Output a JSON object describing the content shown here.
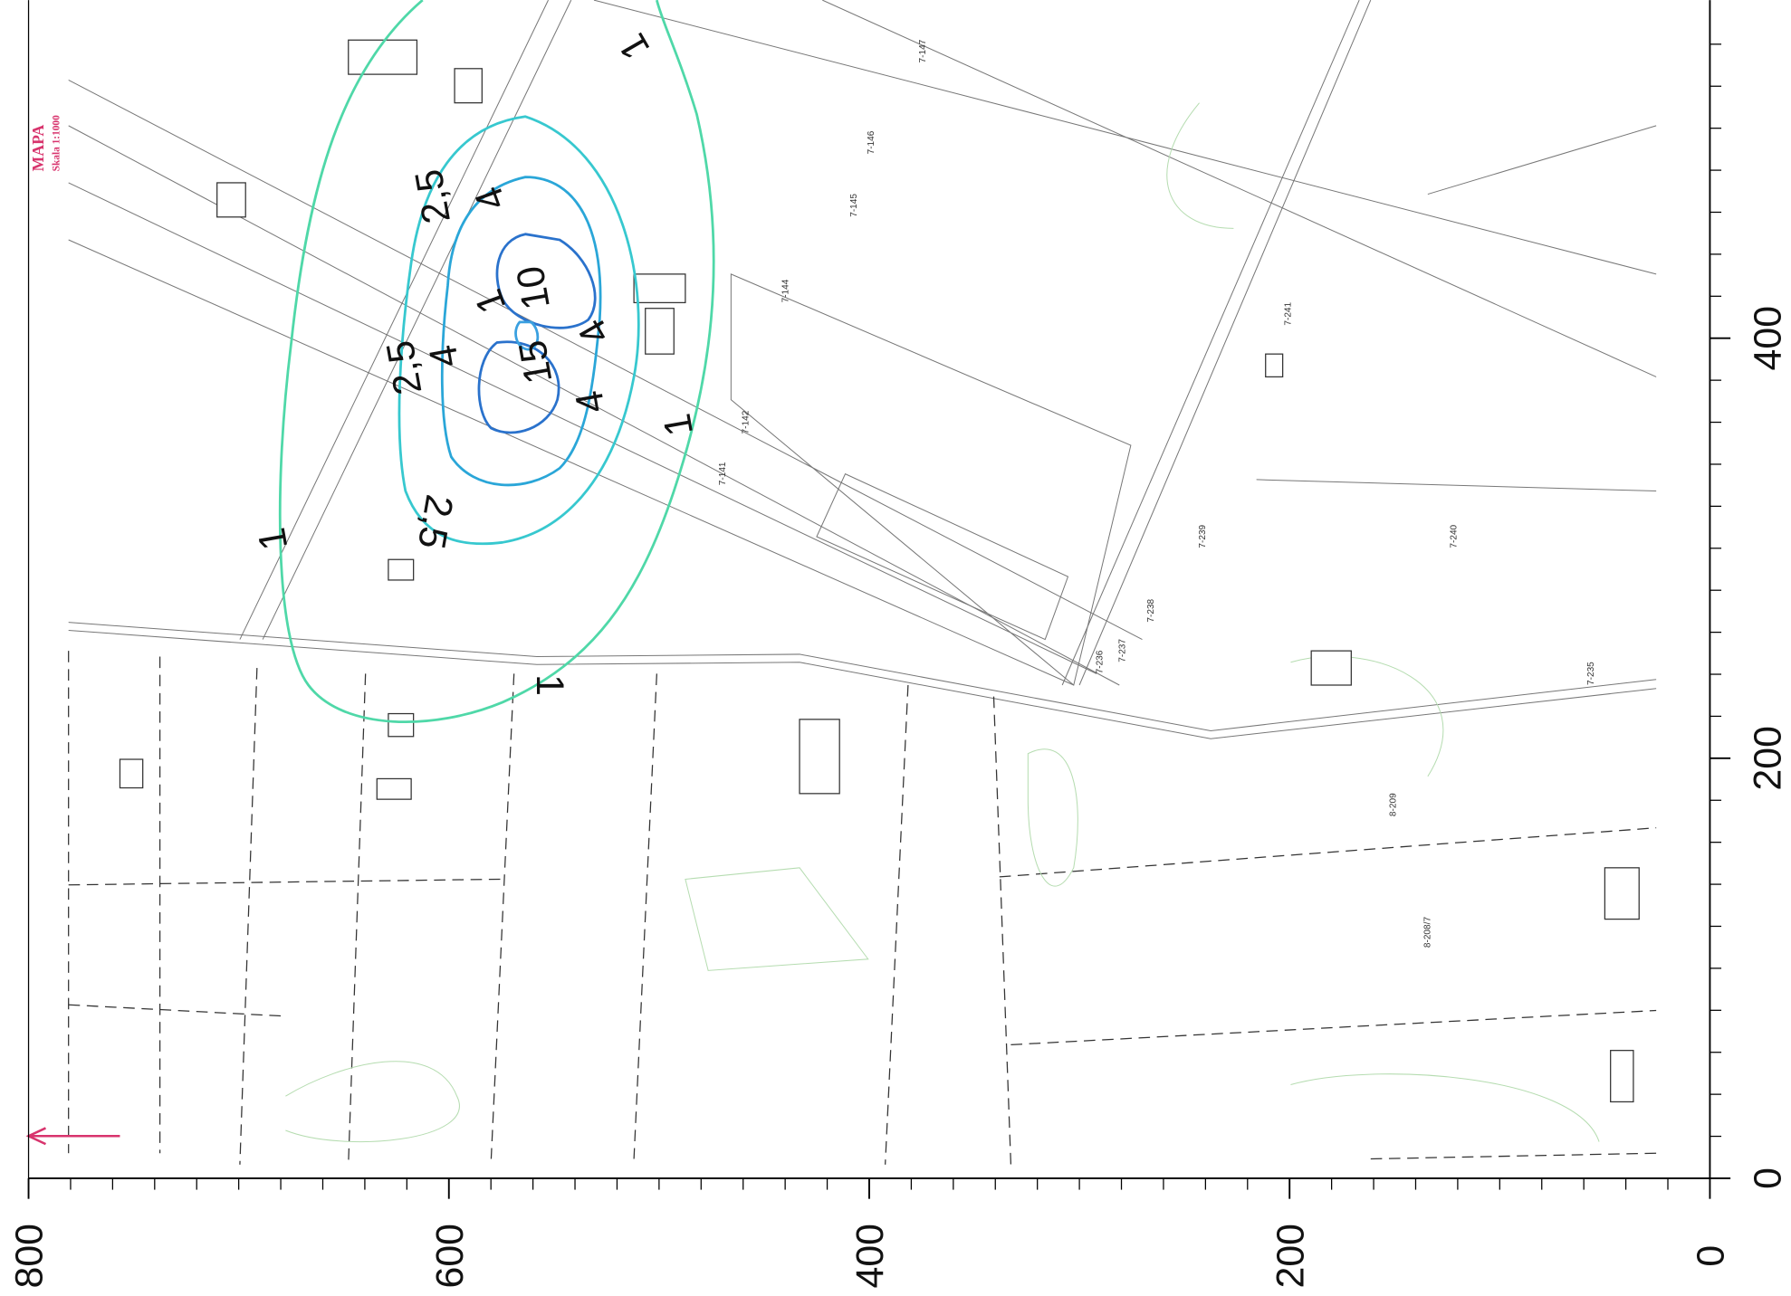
{
  "map": {
    "header": {
      "title": "MAPA",
      "scale": "Skala 1:1000"
    },
    "axes": {
      "xlim": [
        800,
        0
      ],
      "xticks": [
        0,
        200,
        400,
        600,
        800
      ],
      "ylim": [
        0,
        561
      ],
      "yticks": [
        0,
        200,
        400
      ]
    },
    "contours": [
      {
        "label": "1",
        "color": "#4fd8a8"
      },
      {
        "label": "2,5",
        "color": "#37c8cf"
      },
      {
        "label": "4",
        "color": "#2aa6d8"
      },
      {
        "label": "10",
        "color": "#2a72cc"
      },
      {
        "label": "15",
        "color": "#3aa0e0"
      }
    ],
    "parcels": [
      "7-142",
      "7-141",
      "7-144",
      "7-239",
      "7-240",
      "7-241",
      "7-238",
      "7-237",
      "7-236",
      "7-235",
      "8-209",
      "8-208/7",
      "7-145",
      "7-146",
      "7-147"
    ]
  }
}
